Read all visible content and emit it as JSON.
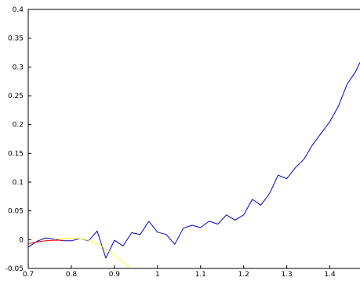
{
  "chart_data": {
    "type": "line",
    "title": "",
    "xlabel": "",
    "ylabel": "",
    "xlim": [
      0.7,
      1.47
    ],
    "ylim": [
      -0.05,
      0.4
    ],
    "grid": false,
    "x_ticks": [
      0.7,
      0.8,
      0.9,
      1,
      1.1,
      1.2,
      1.3,
      1.4
    ],
    "x_tick_labels": [
      "0.7",
      "0.8",
      "0.9",
      "1",
      "1.1",
      "1.2",
      "1.3",
      "1.4"
    ],
    "y_ticks": [
      -0.05,
      0,
      0.05,
      0.1,
      0.15,
      0.2,
      0.25,
      0.3,
      0.35,
      0.4
    ],
    "y_tick_labels": [
      "-0.05",
      "0",
      "0.05",
      "0.1",
      "0.15",
      "0.2",
      "0.25",
      "0.3",
      "0.35",
      "0.4"
    ],
    "series": [
      {
        "color": "#0000cc",
        "x": [
          0.7,
          0.72,
          0.74,
          0.76,
          0.78,
          0.8,
          0.82,
          0.84,
          0.86,
          0.88,
          0.9,
          0.92,
          0.94,
          0.96,
          0.98,
          1.0,
          1.02,
          1.04,
          1.06,
          1.08,
          1.1,
          1.12,
          1.14,
          1.16,
          1.18,
          1.2,
          1.22,
          1.24,
          1.26,
          1.28,
          1.3,
          1.32,
          1.34,
          1.36,
          1.38,
          1.4,
          1.42,
          1.44,
          1.46,
          1.47
        ],
        "y": [
          -0.013,
          -0.003,
          0.003,
          0.001,
          -0.002,
          -0.002,
          0.002,
          -0.002,
          0.015,
          -0.032,
          -0.001,
          -0.011,
          0.012,
          0.009,
          0.032,
          0.013,
          0.009,
          -0.008,
          0.02,
          0.025,
          0.021,
          0.032,
          0.027,
          0.043,
          0.034,
          0.043,
          0.07,
          0.06,
          0.08,
          0.112,
          0.106,
          0.125,
          0.14,
          0.165,
          0.185,
          0.205,
          0.232,
          0.27,
          0.292,
          0.308
        ]
      },
      {
        "color": "#ff0000",
        "x": [
          0.7,
          0.72,
          0.74,
          0.76,
          0.78
        ],
        "y": [
          -0.007,
          -0.004,
          -0.002,
          -0.001,
          -0.001
        ]
      },
      {
        "color": "#ffff33",
        "x": [
          0.76,
          0.78,
          0.8,
          0.82,
          0.84,
          0.86,
          0.88,
          0.9,
          0.92,
          0.94
        ],
        "y": [
          0.001,
          0.002,
          0.003,
          0.002,
          -0.001,
          -0.007,
          -0.016,
          -0.027,
          -0.039,
          -0.052
        ]
      }
    ]
  }
}
